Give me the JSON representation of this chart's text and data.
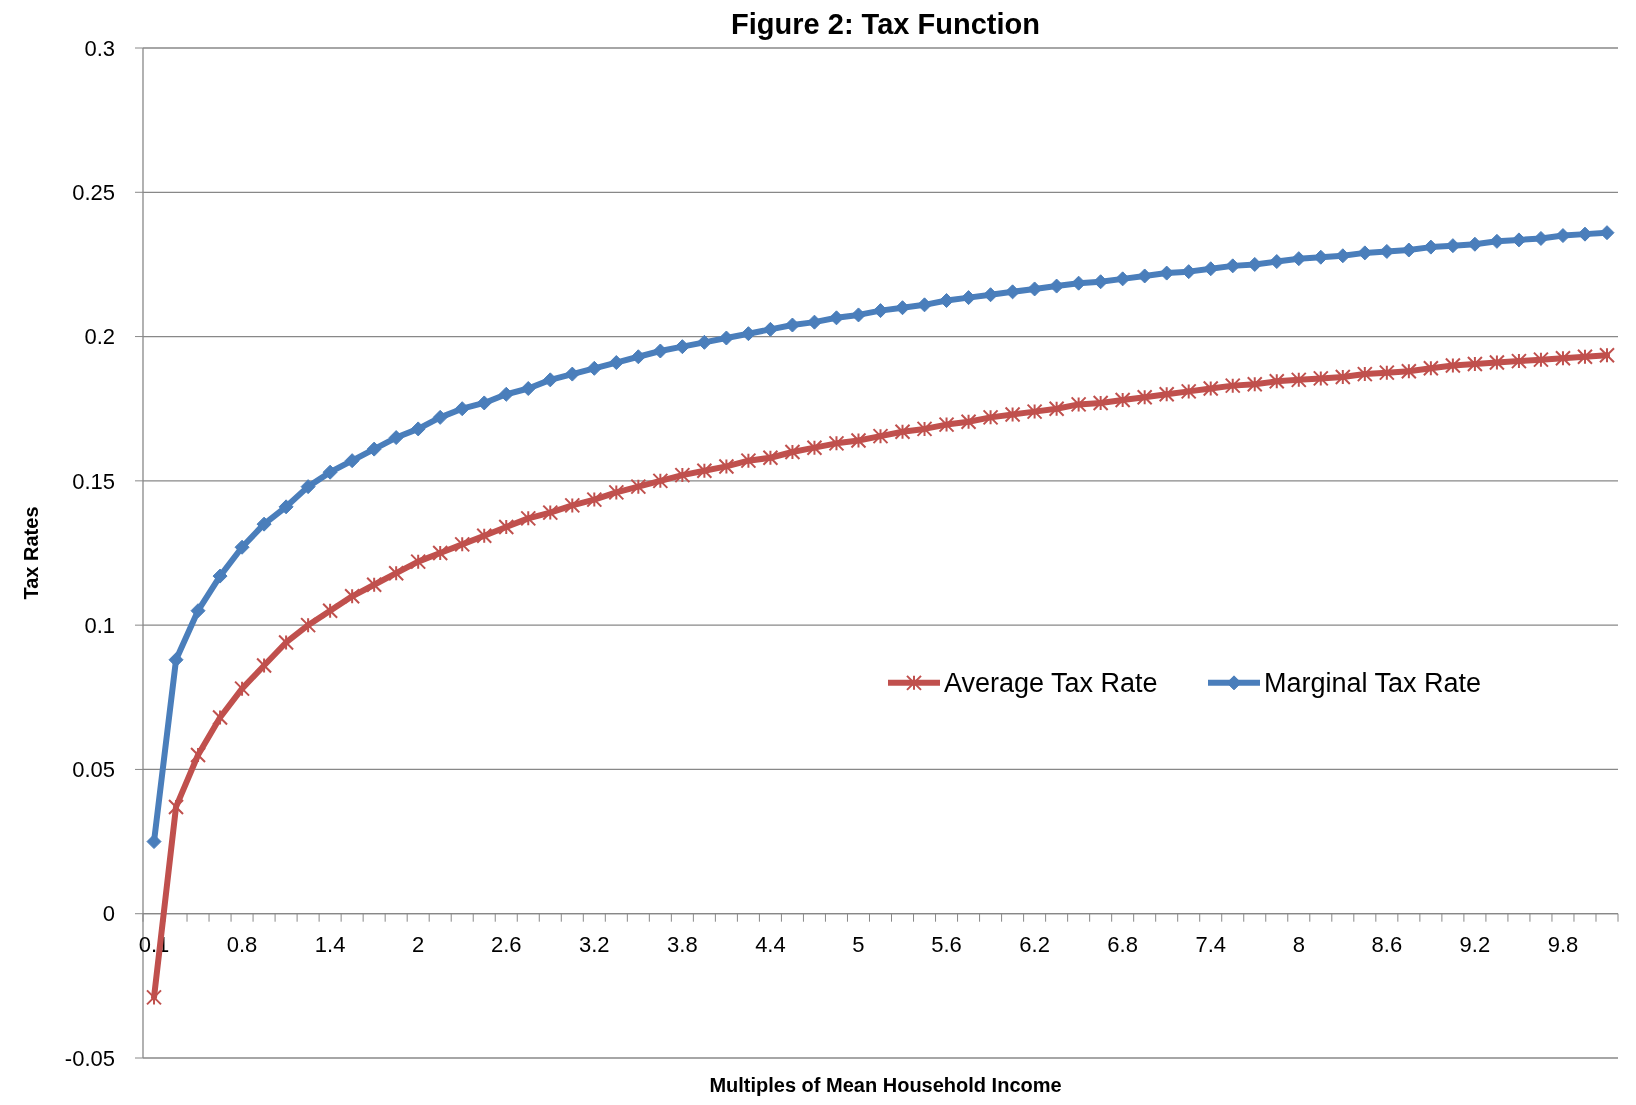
{
  "chart_data": {
    "type": "line",
    "title": "Figure 2: Tax Function",
    "xlabel": "Multiples of Mean Household Income",
    "ylabel": "Tax Rates",
    "categories": [
      "0.1",
      null,
      null,
      null,
      "0.8",
      null,
      null,
      null,
      "1.4",
      null,
      null,
      null,
      "2",
      null,
      null,
      null,
      "2.6",
      null,
      null,
      null,
      "3.2",
      null,
      null,
      null,
      "3.8",
      null,
      null,
      null,
      "4.4",
      null,
      null,
      null,
      "5",
      null,
      null,
      null,
      "5.6",
      null,
      null,
      null,
      "6.2",
      null,
      null,
      null,
      "6.8",
      null,
      null,
      null,
      "7.4",
      null,
      null,
      null,
      "8",
      null,
      null,
      null,
      "8.6",
      null,
      null,
      null,
      "9.2",
      null,
      null,
      null,
      "9.8",
      null,
      null
    ],
    "series": [
      {
        "name": "Average Tax Rate",
        "color": "#c0504d",
        "marker": "cross",
        "values": [
          -0.029,
          0.037,
          0.055,
          0.068,
          0.078,
          0.086,
          0.094,
          0.1,
          0.105,
          0.11,
          0.114,
          0.118,
          0.122,
          0.125,
          0.128,
          0.131,
          0.134,
          0.137,
          0.139,
          0.1415,
          0.1435,
          0.146,
          0.148,
          0.15,
          0.152,
          0.1535,
          0.155,
          0.157,
          0.158,
          0.16,
          0.1615,
          0.163,
          0.164,
          0.1655,
          0.167,
          0.168,
          0.1695,
          0.1705,
          0.172,
          0.173,
          0.174,
          0.175,
          0.1765,
          0.177,
          0.178,
          0.179,
          0.18,
          0.181,
          0.182,
          0.183,
          0.1835,
          0.1845,
          0.185,
          0.1855,
          0.186,
          0.187,
          0.1875,
          0.188,
          0.189,
          0.19,
          0.1905,
          0.191,
          0.1915,
          0.192,
          0.1925,
          0.193,
          0.1935
        ]
      },
      {
        "name": "Marginal Tax Rate",
        "color": "#4a7ebb",
        "marker": "diamond",
        "values": [
          0.025,
          0.088,
          0.105,
          0.117,
          0.127,
          0.135,
          0.141,
          0.148,
          0.153,
          0.157,
          0.161,
          0.165,
          0.168,
          0.172,
          0.175,
          0.177,
          0.18,
          0.182,
          0.185,
          0.187,
          0.189,
          0.191,
          0.193,
          0.195,
          0.1965,
          0.198,
          0.1995,
          0.201,
          0.2025,
          0.204,
          0.205,
          0.2065,
          0.2075,
          0.209,
          0.21,
          0.211,
          0.2125,
          0.2135,
          0.2145,
          0.2155,
          0.2165,
          0.2175,
          0.2185,
          0.219,
          0.22,
          0.221,
          0.222,
          0.2225,
          0.2235,
          0.2245,
          0.225,
          0.226,
          0.227,
          0.2275,
          0.228,
          0.229,
          0.2295,
          0.23,
          0.231,
          0.2315,
          0.232,
          0.233,
          0.2335,
          0.234,
          0.235,
          0.2355,
          0.236
        ]
      }
    ],
    "ylim": [
      -0.05,
      0.3
    ],
    "yticks": [
      -0.05,
      0,
      0.05,
      0.1,
      0.15,
      0.2,
      0.25,
      0.3
    ],
    "grid": "y",
    "legend": "right"
  }
}
